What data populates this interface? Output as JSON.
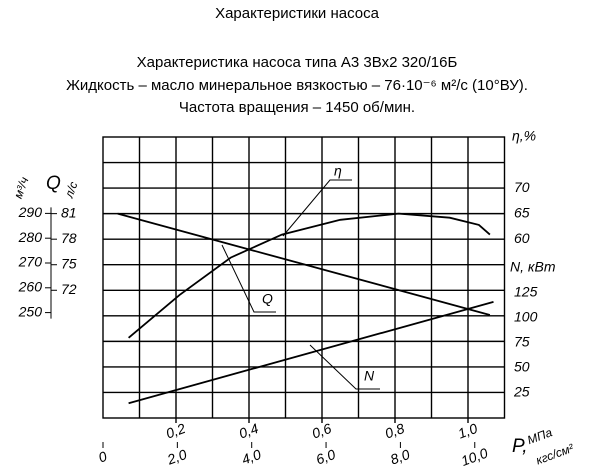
{
  "chart_data": {
    "type": "line",
    "title": "Характеристики насоса",
    "subtitle": [
      "Характеристика насоса типа А3 3Вх2 320/16Б",
      "Жидкость – масло минеральное вязкостью – 76·10⁻⁶ м²/с (10°ВУ).",
      "Частота вращения – 1450 об/мин."
    ],
    "x_label": "P,",
    "x_unit": "МПа",
    "x2_unit": "кгс/см²",
    "xlim": [
      0,
      1.1
    ],
    "xticks": [
      {
        "value": 0.2,
        "label": "0,2"
      },
      {
        "value": 0.4,
        "label": "0,4"
      },
      {
        "value": 0.6,
        "label": "0,6"
      },
      {
        "value": 0.8,
        "label": "0,8"
      },
      {
        "value": 1.0,
        "label": "1,0"
      }
    ],
    "x2lim": [
      0,
      10.8
    ],
    "x2ticks": [
      0,
      {
        "value": 2,
        "label": "2,0"
      },
      {
        "value": 4,
        "label": "4,0"
      },
      {
        "value": 6,
        "label": "6,0"
      },
      {
        "value": 8,
        "label": "8,0"
      },
      {
        "value": 10,
        "label": "10,0"
      }
    ],
    "ylabel": "Q",
    "yunit": "л/с",
    "ylim": [
      57,
      90
    ],
    "yticks": [
      72,
      75,
      78,
      81
    ],
    "y3unit": "м³/ч",
    "y3lim": [
      207.5,
      320.8
    ],
    "y3ticks": [
      250,
      260,
      270,
      280,
      290
    ],
    "y2label": "η,%",
    "y2lim": [
      25,
      80
    ],
    "y2ticks": [
      60,
      65,
      70
    ],
    "y4label": "N, кВт",
    "y4lim": [
      0,
      280
    ],
    "y4ticks": [
      25,
      50,
      75,
      100,
      125
    ],
    "grid": true,
    "series": [
      {
        "name": "Q",
        "color": "#000000",
        "axis": "y",
        "x": [
          0.04,
          1.06
        ],
        "values": [
          81,
          69.1
        ]
      },
      {
        "name": "η",
        "color": "#000000",
        "axis": "y2",
        "x": [
          0.07,
          0.21,
          0.35,
          0.49,
          0.65,
          0.81,
          0.95,
          1.03,
          1.06
        ],
        "values": [
          40.7,
          49.1,
          56.4,
          60.9,
          63.8,
          65,
          64.2,
          62.8,
          60.9
        ]
      },
      {
        "name": "N",
        "color": "#000000",
        "axis": "y4",
        "x": [
          0.07,
          1.07
        ],
        "values": [
          14.7,
          115.7
        ]
      }
    ]
  }
}
